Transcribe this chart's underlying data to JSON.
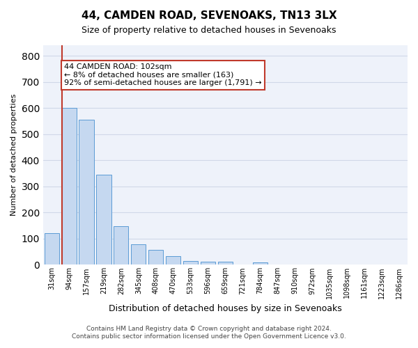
{
  "title": "44, CAMDEN ROAD, SEVENOAKS, TN13 3LX",
  "subtitle": "Size of property relative to detached houses in Sevenoaks",
  "xlabel": "Distribution of detached houses by size in Sevenoaks",
  "ylabel": "Number of detached properties",
  "categories": [
    "31sqm",
    "94sqm",
    "157sqm",
    "219sqm",
    "282sqm",
    "345sqm",
    "408sqm",
    "470sqm",
    "533sqm",
    "596sqm",
    "659sqm",
    "721sqm",
    "784sqm",
    "847sqm",
    "910sqm",
    "972sqm",
    "1035sqm",
    "1098sqm",
    "1161sqm",
    "1223sqm",
    "1286sqm"
  ],
  "values": [
    120,
    600,
    555,
    345,
    148,
    78,
    57,
    33,
    15,
    13,
    13,
    0,
    10,
    0,
    0,
    0,
    0,
    0,
    0,
    0,
    0
  ],
  "bar_color": "#c5d8f0",
  "bar_edge_color": "#5b9bd5",
  "grid_color": "#d0d8e8",
  "bg_color": "#eef2fa",
  "vline_x": 1,
  "vline_color": "#c0392b",
  "annotation_text": "44 CAMDEN ROAD: 102sqm\n← 8% of detached houses are smaller (163)\n92% of semi-detached houses are larger (1,791) →",
  "annotation_box_color": "#c0392b",
  "footer_line1": "Contains HM Land Registry data © Crown copyright and database right 2024.",
  "footer_line2": "Contains public sector information licensed under the Open Government Licence v3.0.",
  "ylim": [
    0,
    840
  ],
  "yticks": [
    0,
    100,
    200,
    300,
    400,
    500,
    600,
    700,
    800
  ]
}
